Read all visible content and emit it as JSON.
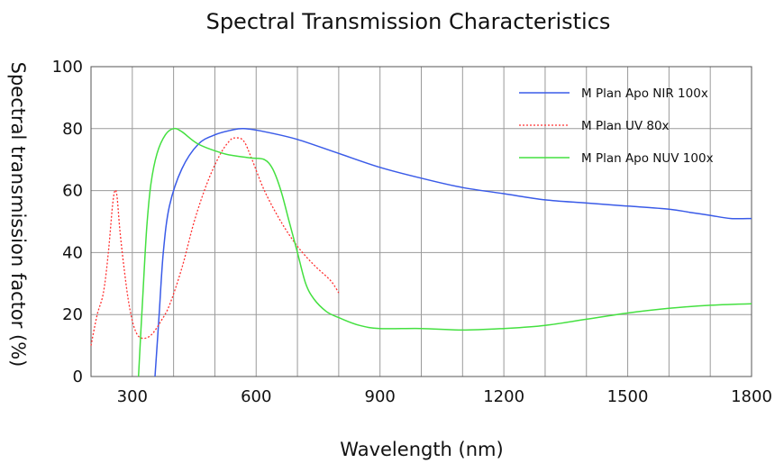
{
  "chart_data": {
    "type": "line",
    "title": "Spectral Transmission Characteristics",
    "xlabel": "Wavelength (nm)",
    "ylabel": "Spectral transmission factor (%)",
    "xlim": [
      200,
      1800
    ],
    "ylim": [
      0,
      100
    ],
    "x_ticks": [
      300,
      600,
      900,
      1200,
      1500,
      1800
    ],
    "y_ticks": [
      0,
      20,
      40,
      60,
      80,
      100
    ],
    "x_tick_labels": [
      "300",
      "600",
      "900",
      "1200",
      "1500",
      "1800"
    ],
    "y_tick_labels": [
      "0",
      "20",
      "40",
      "60",
      "80",
      "100"
    ],
    "x_grid_step": 100,
    "grid": true,
    "legend_position": "top-right",
    "series": [
      {
        "name": "M Plan Apo NIR 100x",
        "color": "#3a5be8",
        "style": "solid",
        "points": [
          [
            355,
            0
          ],
          [
            365,
            20
          ],
          [
            375,
            40
          ],
          [
            390,
            55
          ],
          [
            420,
            67
          ],
          [
            460,
            75
          ],
          [
            500,
            78
          ],
          [
            540,
            79.5
          ],
          [
            570,
            80
          ],
          [
            620,
            79
          ],
          [
            700,
            76.5
          ],
          [
            800,
            72
          ],
          [
            900,
            67.5
          ],
          [
            1000,
            64
          ],
          [
            1100,
            61
          ],
          [
            1200,
            59
          ],
          [
            1300,
            57
          ],
          [
            1400,
            56
          ],
          [
            1500,
            55
          ],
          [
            1600,
            54
          ],
          [
            1650,
            53
          ],
          [
            1700,
            52
          ],
          [
            1750,
            51
          ],
          [
            1800,
            51
          ]
        ]
      },
      {
        "name": "M Plan UV 80x",
        "color": "#ff3030",
        "style": "dotted",
        "points": [
          [
            200,
            10
          ],
          [
            215,
            20
          ],
          [
            230,
            27
          ],
          [
            242,
            40
          ],
          [
            252,
            55
          ],
          [
            258,
            60
          ],
          [
            263,
            58
          ],
          [
            270,
            47
          ],
          [
            280,
            35
          ],
          [
            290,
            25
          ],
          [
            300,
            18
          ],
          [
            310,
            14
          ],
          [
            320,
            12.5
          ],
          [
            335,
            12.5
          ],
          [
            350,
            14
          ],
          [
            370,
            18
          ],
          [
            390,
            23
          ],
          [
            420,
            35
          ],
          [
            450,
            50
          ],
          [
            480,
            62
          ],
          [
            510,
            71
          ],
          [
            535,
            76
          ],
          [
            550,
            77
          ],
          [
            570,
            76
          ],
          [
            590,
            70
          ],
          [
            620,
            60
          ],
          [
            660,
            50
          ],
          [
            700,
            42
          ],
          [
            740,
            36
          ],
          [
            780,
            31
          ],
          [
            800,
            27
          ]
        ]
      },
      {
        "name": "M Plan Apo NUV 100x",
        "color": "#44e040",
        "style": "solid",
        "points": [
          [
            315,
            0
          ],
          [
            325,
            25
          ],
          [
            335,
            48
          ],
          [
            345,
            62
          ],
          [
            360,
            72
          ],
          [
            380,
            78
          ],
          [
            400,
            80
          ],
          [
            420,
            79
          ],
          [
            460,
            75
          ],
          [
            520,
            72
          ],
          [
            560,
            71
          ],
          [
            590,
            70.5
          ],
          [
            620,
            70
          ],
          [
            640,
            67
          ],
          [
            660,
            60
          ],
          [
            680,
            50
          ],
          [
            700,
            40
          ],
          [
            720,
            30
          ],
          [
            740,
            25
          ],
          [
            770,
            21
          ],
          [
            800,
            19
          ],
          [
            850,
            16.5
          ],
          [
            900,
            15.5
          ],
          [
            1000,
            15.5
          ],
          [
            1100,
            15
          ],
          [
            1200,
            15.5
          ],
          [
            1300,
            16.5
          ],
          [
            1400,
            18.5
          ],
          [
            1500,
            20.5
          ],
          [
            1600,
            22
          ],
          [
            1700,
            23
          ],
          [
            1800,
            23.5
          ]
        ]
      }
    ]
  }
}
